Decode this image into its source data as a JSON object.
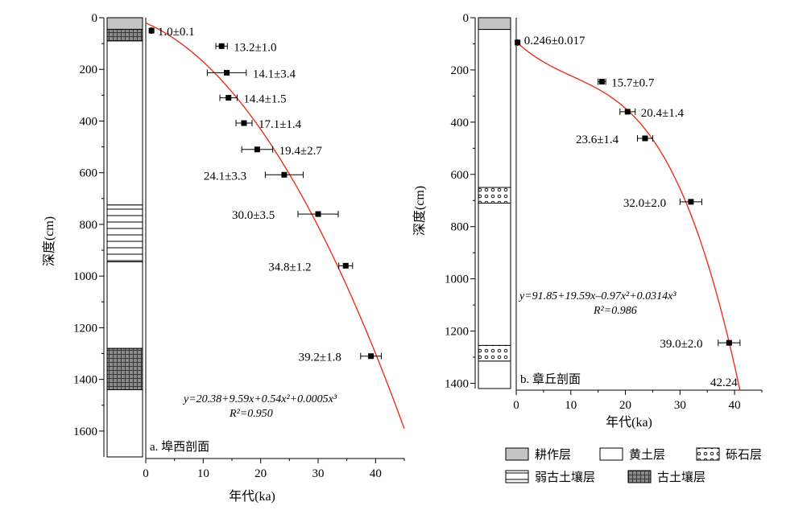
{
  "chart_data": [
    {
      "type": "scatter",
      "panel_label": "a. 埠西剖面",
      "xlabel": "年代(ka)",
      "ylabel": "深度(cm)",
      "xlim": [
        0,
        45
      ],
      "ylim": [
        1700,
        0
      ],
      "y_inverted": true,
      "xticks": [
        "0",
        "10",
        "20",
        "30",
        "40"
      ],
      "yticks": [
        "0",
        "200",
        "400",
        "600",
        "800",
        "1000",
        "1200",
        "1400",
        "1600"
      ],
      "points": [
        {
          "x": 1.0,
          "y": 50,
          "err": 0.1,
          "label": "1.0±0.1"
        },
        {
          "x": 13.2,
          "y": 110,
          "err": 1.0,
          "label": "13.2±1.0"
        },
        {
          "x": 14.1,
          "y": 213,
          "err": 3.4,
          "label": "14.1±3.4"
        },
        {
          "x": 14.4,
          "y": 310,
          "err": 1.5,
          "label": "14.4±1.5"
        },
        {
          "x": 17.1,
          "y": 408,
          "err": 1.4,
          "label": "17.1±1.4"
        },
        {
          "x": 19.4,
          "y": 510,
          "err": 2.7,
          "label": "19.4±2.7"
        },
        {
          "x": 24.1,
          "y": 608,
          "err": 3.3,
          "label": "24.1±3.3"
        },
        {
          "x": 30.0,
          "y": 760,
          "err": 3.5,
          "label": "30.0±3.5"
        },
        {
          "x": 34.8,
          "y": 960,
          "err": 1.2,
          "label": "34.8±1.2"
        },
        {
          "x": 39.2,
          "y": 1310,
          "err": 1.8,
          "label": "39.2±1.8"
        }
      ],
      "fit": {
        "type": "cubic",
        "coef": [
          20.38,
          9.59,
          0.54,
          0.0005
        ],
        "color": "#e8321e"
      },
      "equation": "y=20.38+9.59x+0.54x²+0.0005x³",
      "r2": "R²=0.950",
      "column": [
        {
          "layer": "耕作层",
          "top": 0,
          "bottom": 45
        },
        {
          "layer": "古土壤层",
          "top": 45,
          "bottom": 90
        },
        {
          "layer": "黄土层",
          "top": 90,
          "bottom": 725
        },
        {
          "layer": "弱古土壤层",
          "top": 725,
          "bottom": 945
        },
        {
          "layer": "黄土层",
          "top": 945,
          "bottom": 1280
        },
        {
          "layer": "古土壤层",
          "top": 1280,
          "bottom": 1440
        },
        {
          "layer": "黄土层",
          "top": 1440,
          "bottom": 1700
        }
      ]
    },
    {
      "type": "scatter",
      "panel_label": "b. 章丘剖面",
      "xlabel": "年代(ka)",
      "ylabel": "深度(cm)",
      "xlim": [
        0,
        45
      ],
      "ylim": [
        1420,
        0
      ],
      "y_inverted": true,
      "xticks": [
        "0",
        "10",
        "20",
        "30",
        "40"
      ],
      "yticks": [
        "0",
        "200",
        "400",
        "600",
        "800",
        "1000",
        "1200",
        "1400"
      ],
      "points": [
        {
          "x": 0.246,
          "y": 95,
          "err": 0.017,
          "label": "0.246±0.017"
        },
        {
          "x": 15.7,
          "y": 245,
          "err": 0.7,
          "label": "15.7±0.7"
        },
        {
          "x": 20.4,
          "y": 360,
          "err": 1.4,
          "label": "20.4±1.4"
        },
        {
          "x": 23.6,
          "y": 462,
          "err": 1.4,
          "label": "23.6±1.4"
        },
        {
          "x": 32.0,
          "y": 705,
          "err": 2.0,
          "label": "32.0±2.0"
        },
        {
          "x": 39.0,
          "y": 1245,
          "err": 2.0,
          "label": "39.0±2.0"
        }
      ],
      "fit": {
        "type": "cubic",
        "coef": [
          91.85,
          19.59,
          -0.97,
          0.0314
        ],
        "color": "#e8321e"
      },
      "fit_end_label": "42.24",
      "equation": "y=91.85+19.59x–0.97x²+0.0314x³",
      "r2": "R²=0.986",
      "column": [
        {
          "layer": "耕作层",
          "top": 0,
          "bottom": 45
        },
        {
          "layer": "黄土层",
          "top": 45,
          "bottom": 650
        },
        {
          "layer": "砾石层",
          "top": 650,
          "bottom": 710
        },
        {
          "layer": "黄土层",
          "top": 710,
          "bottom": 1255
        },
        {
          "layer": "砾石层",
          "top": 1255,
          "bottom": 1315
        },
        {
          "layer": "黄土层",
          "top": 1315,
          "bottom": 1420
        }
      ]
    }
  ],
  "legend": [
    {
      "key": "耕作层",
      "label": "耕作层"
    },
    {
      "key": "黄土层",
      "label": "黄土层"
    },
    {
      "key": "砾石层",
      "label": "砾石层"
    },
    {
      "key": "弱古土壤层",
      "label": "弱古土壤层"
    },
    {
      "key": "古土壤层",
      "label": "古土壤层"
    }
  ],
  "colors": {
    "fit": "#e8321e",
    "tillage": "#c4c4c4",
    "marker": "#000000"
  }
}
